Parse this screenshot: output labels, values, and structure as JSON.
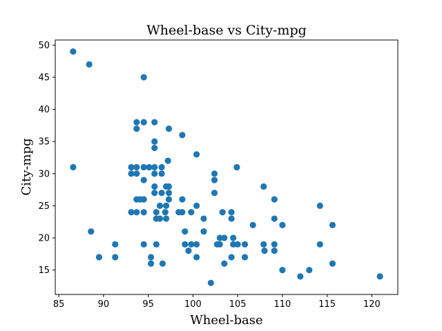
{
  "chart_data": {
    "type": "scatter",
    "title": "Wheel-base vs City-mpg",
    "xlabel": "Wheel-base",
    "ylabel": "City-mpg",
    "xlim": [
      84.6,
      122.9
    ],
    "ylim": [
      11.2,
      50.8
    ],
    "xticks": [
      85,
      90,
      95,
      100,
      105,
      110,
      115,
      120
    ],
    "yticks": [
      15,
      20,
      25,
      30,
      35,
      40,
      45,
      50
    ],
    "grid": false,
    "legend": "none",
    "marker_color": "#1f77b4",
    "series": [
      {
        "points": [
          [
            86.6,
            49
          ],
          [
            88.4,
            47
          ],
          [
            94.5,
            45
          ],
          [
            93.7,
            38
          ],
          [
            94.5,
            38
          ],
          [
            95.7,
            38
          ],
          [
            93.7,
            37
          ],
          [
            97.3,
            37
          ],
          [
            98.8,
            36
          ],
          [
            95.7,
            35
          ],
          [
            95.7,
            34
          ],
          [
            100.4,
            33
          ],
          [
            97.2,
            32
          ],
          [
            86.6,
            31
          ],
          [
            93.1,
            31
          ],
          [
            93.7,
            31
          ],
          [
            94.5,
            31
          ],
          [
            95.1,
            31
          ],
          [
            95.7,
            31
          ],
          [
            96.5,
            31
          ],
          [
            104.9,
            31
          ],
          [
            93.1,
            30
          ],
          [
            93.7,
            30
          ],
          [
            95.7,
            30
          ],
          [
            96.5,
            30
          ],
          [
            102.4,
            30
          ],
          [
            94.5,
            29
          ],
          [
            102.4,
            29
          ],
          [
            95.7,
            28
          ],
          [
            97.0,
            28
          ],
          [
            97.3,
            28
          ],
          [
            107.9,
            28
          ],
          [
            95.7,
            27
          ],
          [
            96.5,
            27
          ],
          [
            97.3,
            27
          ],
          [
            102.4,
            27
          ],
          [
            109.1,
            26
          ],
          [
            93.7,
            26
          ],
          [
            94.1,
            26
          ],
          [
            94.5,
            26
          ],
          [
            97.3,
            26
          ],
          [
            98.8,
            26
          ],
          [
            96.3,
            25
          ],
          [
            97.0,
            25
          ],
          [
            100.4,
            25
          ],
          [
            114.2,
            25
          ],
          [
            93.1,
            24
          ],
          [
            93.7,
            24
          ],
          [
            94.5,
            24
          ],
          [
            95.9,
            24
          ],
          [
            96.9,
            24
          ],
          [
            98.4,
            24
          ],
          [
            98.8,
            24
          ],
          [
            99.8,
            24
          ],
          [
            103.3,
            24
          ],
          [
            104.3,
            24
          ],
          [
            95.9,
            23
          ],
          [
            96.3,
            23
          ],
          [
            97.0,
            23
          ],
          [
            101.2,
            23
          ],
          [
            104.3,
            23
          ],
          [
            109.1,
            23
          ],
          [
            106.7,
            22
          ],
          [
            110.0,
            22
          ],
          [
            115.6,
            22
          ],
          [
            88.6,
            21
          ],
          [
            99.1,
            21
          ],
          [
            101.2,
            21
          ],
          [
            103.0,
            20
          ],
          [
            103.5,
            20
          ],
          [
            104.5,
            20
          ],
          [
            91.3,
            19
          ],
          [
            94.5,
            19
          ],
          [
            95.9,
            19
          ],
          [
            99.1,
            19
          ],
          [
            99.8,
            19
          ],
          [
            100.4,
            19
          ],
          [
            102.7,
            19
          ],
          [
            103.0,
            19
          ],
          [
            104.5,
            19
          ],
          [
            105.0,
            19
          ],
          [
            105.8,
            19
          ],
          [
            107.9,
            19
          ],
          [
            109.1,
            19
          ],
          [
            114.2,
            19
          ],
          [
            99.5,
            18
          ],
          [
            108.0,
            18
          ],
          [
            109.1,
            18
          ],
          [
            89.5,
            17
          ],
          [
            91.3,
            17
          ],
          [
            95.3,
            17
          ],
          [
            100.4,
            17
          ],
          [
            104.3,
            17
          ],
          [
            105.8,
            17
          ],
          [
            95.3,
            16
          ],
          [
            96.6,
            16
          ],
          [
            103.5,
            16
          ],
          [
            115.6,
            16
          ],
          [
            110.0,
            15
          ],
          [
            113.0,
            15
          ],
          [
            112.0,
            14
          ],
          [
            120.9,
            14
          ],
          [
            102.0,
            13
          ]
        ]
      }
    ]
  }
}
